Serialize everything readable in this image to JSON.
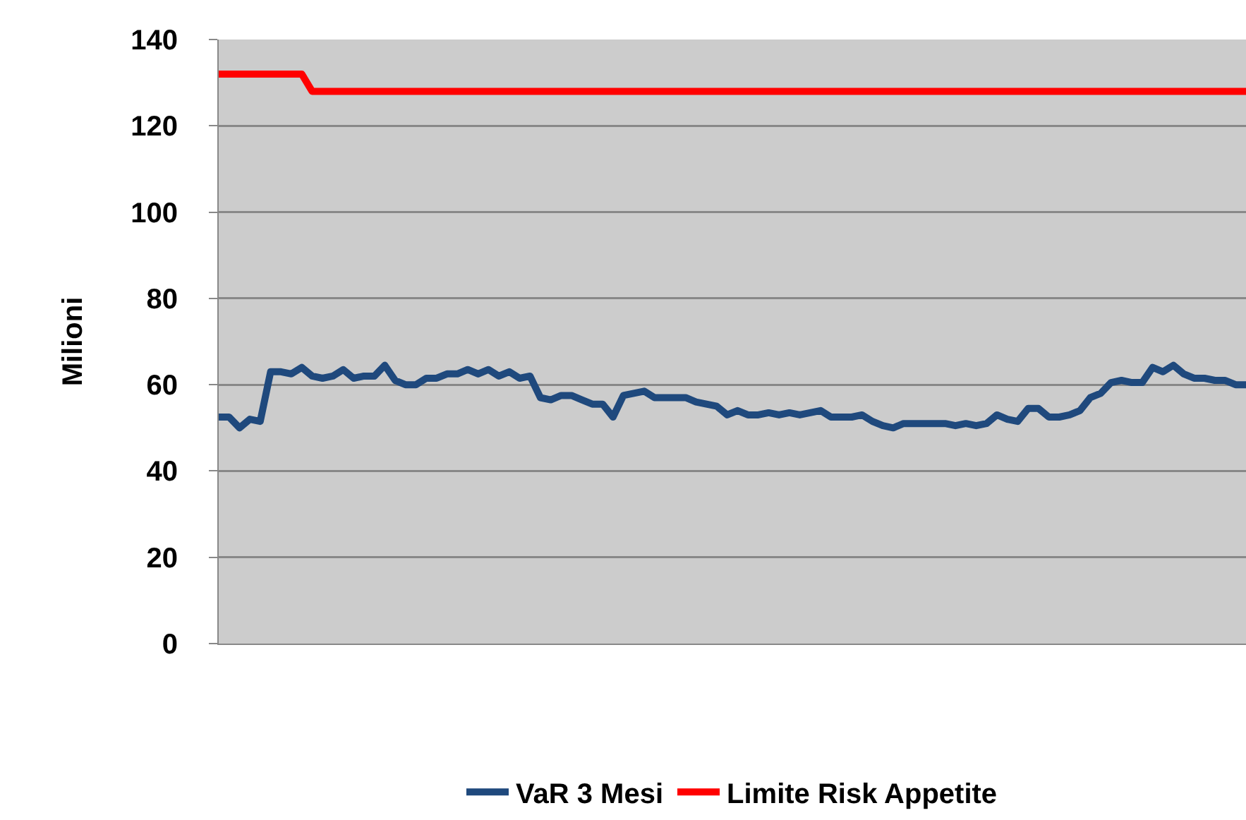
{
  "chart_data": {
    "type": "line",
    "ylabel": "Milioni",
    "categories": [
      null,
      null,
      null,
      null,
      null,
      null,
      null,
      null,
      null,
      null,
      null,
      null,
      null,
      null,
      null,
      null,
      null,
      null,
      null,
      null,
      null,
      null,
      null,
      null,
      null,
      null,
      null,
      null,
      null,
      null,
      null,
      null,
      null,
      null,
      null,
      null,
      null,
      null,
      null,
      null,
      null,
      null,
      null,
      null,
      null,
      null,
      null,
      null,
      null,
      null,
      null,
      null,
      null,
      null,
      null,
      null,
      null,
      null,
      null,
      null,
      null,
      null,
      null,
      null,
      null,
      null,
      null,
      null,
      null,
      null,
      null,
      null,
      null,
      null,
      null,
      null,
      null,
      null,
      null,
      null,
      null,
      null,
      null,
      null,
      null,
      null,
      null,
      null,
      null,
      null,
      null,
      null,
      null,
      null,
      null,
      null,
      null,
      null,
      null,
      null
    ],
    "series": [
      {
        "name": "VaR 3 Mesi",
        "color": "#1f497d",
        "values": [
          52.5,
          52.5,
          50,
          52,
          51.5,
          63,
          63,
          62.5,
          64,
          62,
          61.5,
          62,
          63.5,
          61.5,
          62,
          62,
          64.5,
          61,
          60,
          60,
          61.5,
          61.5,
          62.5,
          62.5,
          63.5,
          62.5,
          63.5,
          62,
          63,
          61.5,
          62,
          57,
          56.5,
          57.5,
          57.5,
          56.5,
          55.5,
          55.5,
          52.5,
          57.5,
          58,
          58.5,
          57,
          57,
          57,
          57,
          56,
          55.5,
          55,
          53,
          54,
          53,
          53,
          53.5,
          53,
          53.5,
          53,
          53.5,
          54,
          52.5,
          52.5,
          52.5,
          53,
          51.5,
          50.5,
          50,
          51,
          51,
          51,
          51,
          51,
          50.5,
          51,
          50.5,
          51,
          53,
          52,
          51.5,
          54.5,
          54.5,
          52.5,
          52.5,
          53,
          54,
          57,
          58,
          60.5,
          61,
          60.5,
          60.5,
          64,
          63,
          64.5,
          62.5,
          61.5,
          61.5,
          61,
          61,
          60,
          60
        ]
      },
      {
        "name": "Limite Risk Appetite",
        "color": "#ff0000",
        "values": [
          132,
          132,
          132,
          132,
          132,
          132,
          132,
          132,
          132,
          128,
          128,
          128,
          128,
          128,
          128,
          128,
          128,
          128,
          128,
          128,
          128,
          128,
          128,
          128,
          128,
          128,
          128,
          128,
          128,
          128,
          128,
          128,
          128,
          128,
          128,
          128,
          128,
          128,
          128,
          128,
          128,
          128,
          128,
          128,
          128,
          128,
          128,
          128,
          128,
          128,
          128,
          128,
          128,
          128,
          128,
          128,
          128,
          128,
          128,
          128,
          128,
          128,
          128,
          128,
          128,
          128,
          128,
          128,
          128,
          128,
          128,
          128,
          128,
          128,
          128,
          128,
          128,
          128,
          128,
          128,
          128,
          128,
          128,
          128,
          128,
          128,
          128,
          128,
          128,
          128,
          128,
          128,
          128,
          128,
          128,
          128,
          128,
          128,
          128,
          128
        ]
      }
    ],
    "ylim": [
      0,
      140
    ],
    "yticks": [
      0,
      20,
      40,
      60,
      80,
      100,
      120,
      140
    ],
    "grid": "y",
    "legend": "bottom",
    "tick_labels": "y",
    "marker": "none",
    "line_style": "solid"
  }
}
